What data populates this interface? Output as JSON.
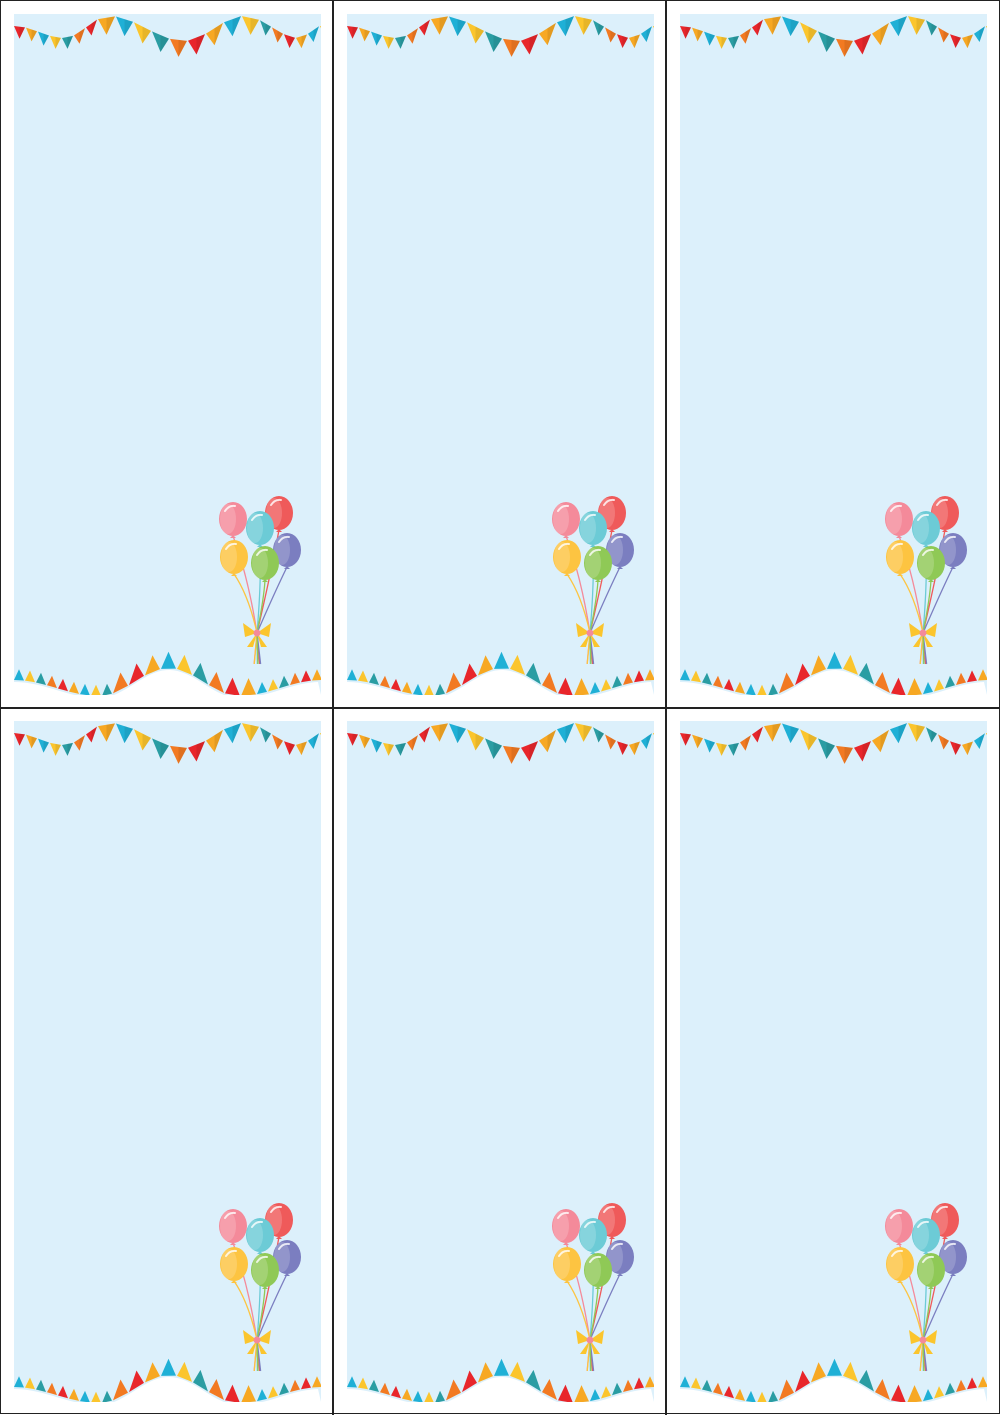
{
  "sheet": {
    "columns": 3,
    "rows": 2,
    "card_count": 6
  },
  "card": {
    "background_color": "#dcf0fb",
    "decorations": [
      "bunting-top",
      "bunting-bottom",
      "balloon-bouquet"
    ],
    "bunting_colors": [
      "#e8262b",
      "#f7a823",
      "#1fb0d6",
      "#fbc52d",
      "#2a9da3",
      "#f27a22"
    ],
    "balloon_colors": {
      "pink": "#f48a9a",
      "red": "#ef5a5a",
      "cyan": "#6ccbd6",
      "yellow": "#fdc441",
      "blue": "#7b7ec0",
      "green": "#8fc956"
    },
    "ribbon_color": "#fbc52d",
    "bow_knot_color": "#f48a9a"
  }
}
